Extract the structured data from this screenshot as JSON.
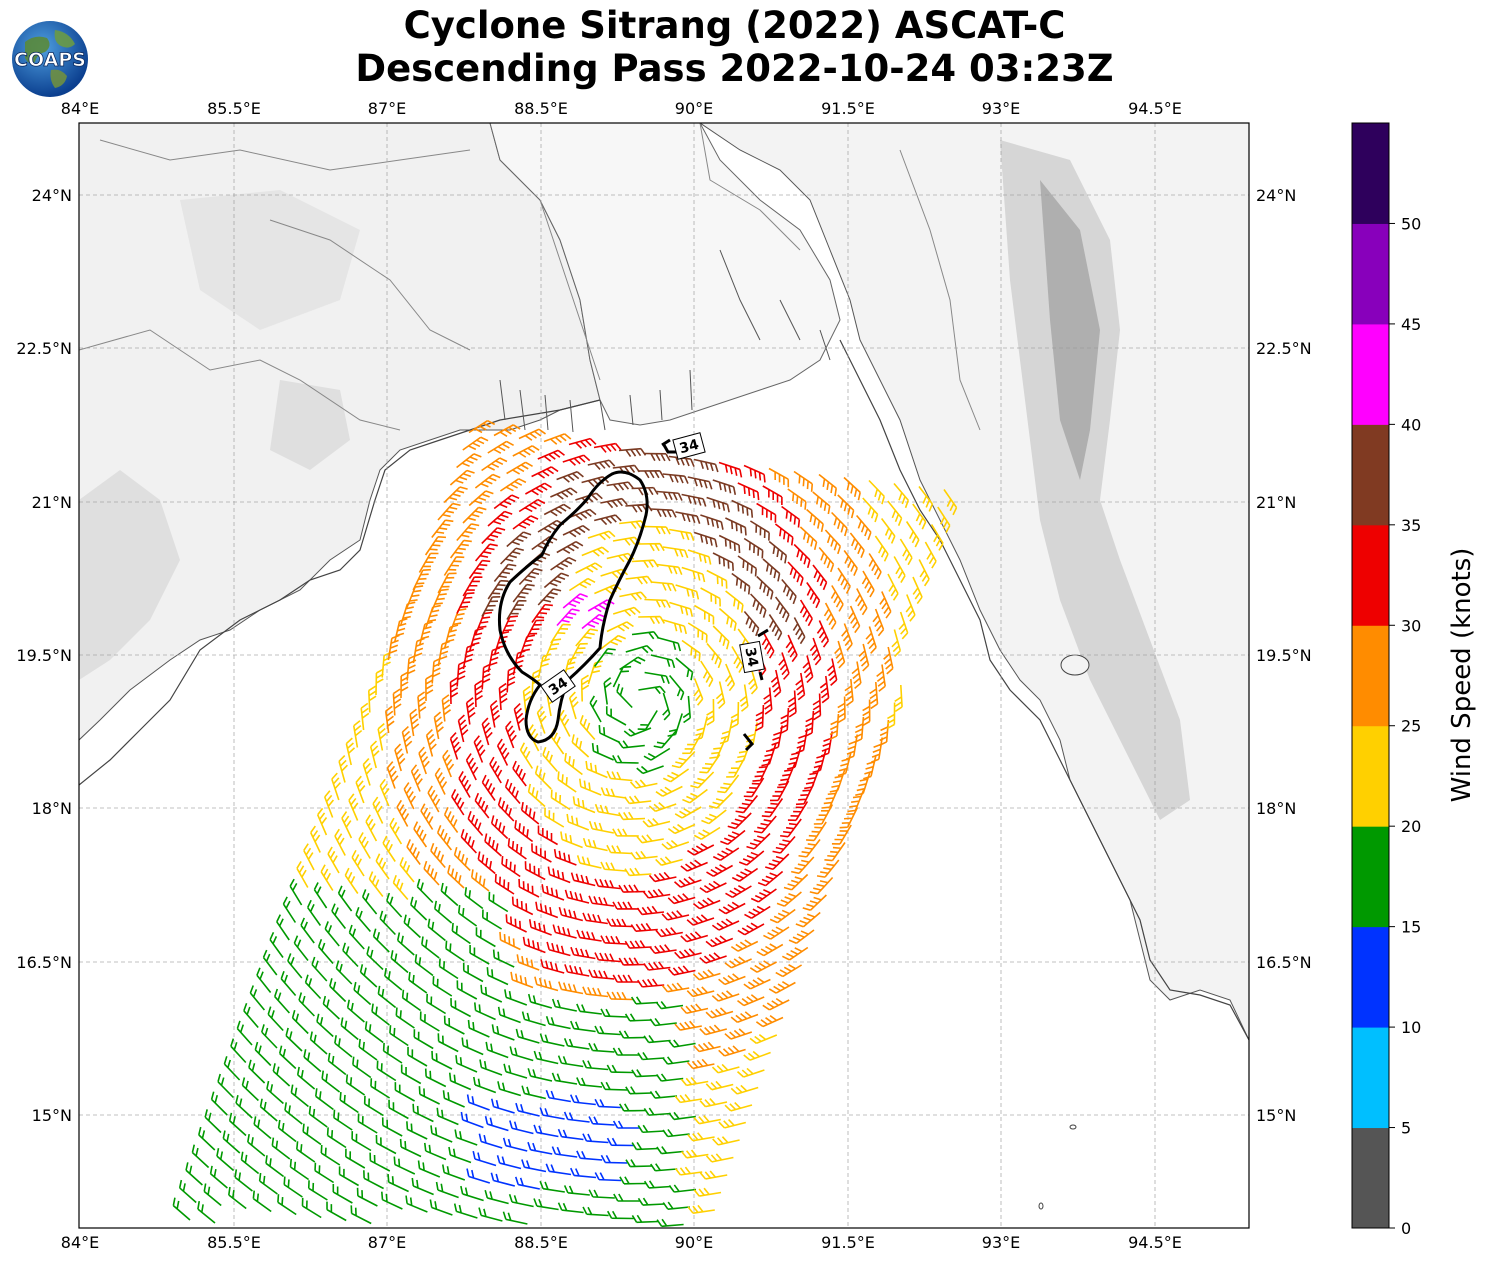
{
  "title": {
    "line1": "Cyclone Sitrang (2022) ASCAT-C",
    "line2": "Descending Pass 2022-10-24 03:23Z"
  },
  "logo": {
    "text": "COAPS",
    "icon": "globe-logo-icon"
  },
  "map": {
    "lon_range": [
      84.0,
      95.5
    ],
    "lat_range": [
      13.8,
      24.6
    ],
    "lon_ticks": [
      "84°E",
      "85.5°E",
      "87°E",
      "88.5°E",
      "90°E",
      "91.5°E",
      "93°E",
      "94.5°E"
    ],
    "lat_ticks": [
      "24°N",
      "22.5°N",
      "21°N",
      "19.5°N",
      "18°N",
      "16.5°N",
      "15°N"
    ],
    "gridlines": true,
    "background": "grayscale topography",
    "contour_label": "34",
    "barb_colors": {
      "15-20": "#009900",
      "10-15": "#0033ff",
      "20-25": "#ffd000",
      "25-30": "#ff8c00",
      "30-35": "#ee0000",
      "35-40": "#7a3a22",
      "40-45": "#ff00ff",
      "45-50": "#8800bb"
    }
  },
  "colorbar": {
    "label": "Wind Speed (knots)",
    "ticks": [
      "0",
      "5",
      "10",
      "15",
      "20",
      "25",
      "30",
      "35",
      "40",
      "45",
      "50"
    ],
    "colors": [
      "#555555",
      "#00bfff",
      "#0033ff",
      "#009900",
      "#ffd000",
      "#ff8c00",
      "#ee0000",
      "#803a22",
      "#ff00ff",
      "#8800bb",
      "#2e005c"
    ]
  }
}
